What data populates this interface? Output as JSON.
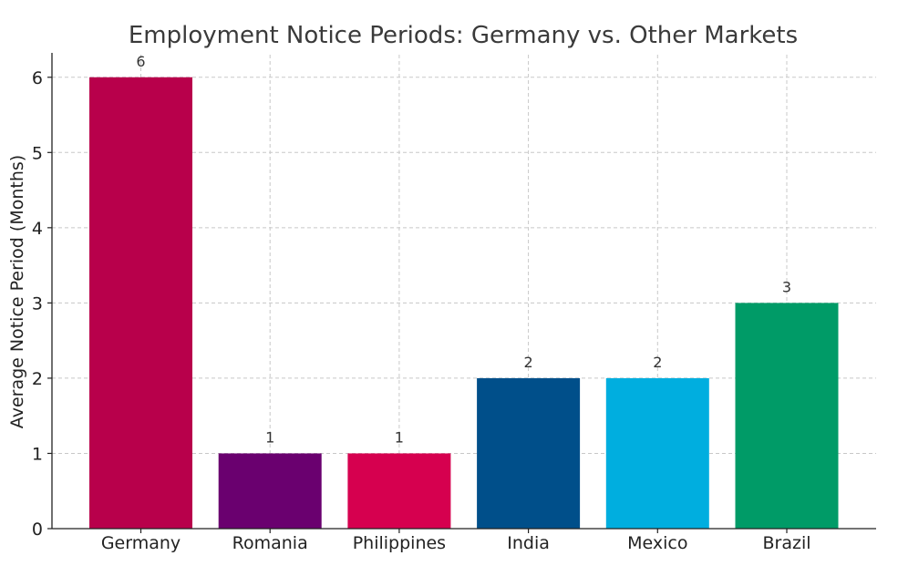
{
  "chart_data": {
    "type": "bar",
    "title": "Employment Notice Periods: Germany vs. Other Markets",
    "xlabel": "",
    "ylabel": "Average Notice Period (Months)",
    "categories": [
      "Germany",
      "Romania",
      "Philippines",
      "India",
      "Mexico",
      "Brazil"
    ],
    "values": [
      6,
      1,
      1,
      2,
      2,
      3
    ],
    "data_labels": [
      "6",
      "1",
      "1",
      "2",
      "2",
      "3"
    ],
    "colors": [
      "#B8004B",
      "#6A006F",
      "#D6004F",
      "#004F8A",
      "#00AEDF",
      "#009B67"
    ],
    "ylim": [
      0,
      6.3
    ],
    "yticks": [
      0,
      1,
      2,
      3,
      4,
      5,
      6
    ],
    "grid": true,
    "legend": "none"
  }
}
